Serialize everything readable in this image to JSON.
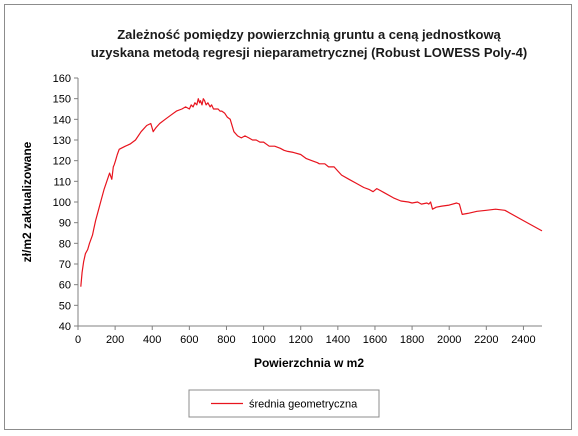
{
  "chart_data": {
    "type": "line",
    "title": [
      "Zależność pomiędzy powierzchnią gruntu a ceną jednostkową",
      "uzyskana metodą regresji nieparametrycznej (Robust LOWESS Poly-4)"
    ],
    "xlabel": "Powierzchnia  w m2",
    "ylabel": "zł/m2 zaktualizowane",
    "xlim": [
      0,
      2500
    ],
    "ylim": [
      40,
      160
    ],
    "xticks": [
      0,
      200,
      400,
      600,
      800,
      1000,
      1200,
      1400,
      1600,
      1800,
      2000,
      2200,
      2400
    ],
    "yticks": [
      40,
      50,
      60,
      70,
      80,
      90,
      100,
      110,
      120,
      130,
      140,
      150,
      160
    ],
    "grid": false,
    "legend_position": "bottom",
    "series": [
      {
        "name": "średnia geometryczna",
        "color": "#e8141e",
        "x": [
          15,
          22,
          30,
          40,
          52,
          62,
          70,
          78,
          85,
          95,
          110,
          125,
          140,
          155,
          170,
          182,
          190,
          195,
          202,
          212,
          222,
          232,
          255,
          280,
          310,
          340,
          370,
          392,
          405,
          412,
          420,
          440,
          470,
          500,
          530,
          560,
          580,
          600,
          610,
          620,
          630,
          640,
          648,
          655,
          660,
          668,
          675,
          682,
          690,
          700,
          712,
          720,
          730,
          742,
          755,
          765,
          775,
          790,
          805,
          820,
          840,
          860,
          880,
          900,
          920,
          940,
          960,
          980,
          1000,
          1030,
          1060,
          1090,
          1110,
          1130,
          1160,
          1200,
          1230,
          1260,
          1290,
          1300,
          1330,
          1350,
          1380,
          1400,
          1420,
          1460,
          1500,
          1540,
          1570,
          1590,
          1610,
          1650,
          1700,
          1740,
          1780,
          1800,
          1830,
          1850,
          1880,
          1890,
          1900,
          1910,
          1930,
          1960,
          2000,
          2040,
          2055,
          2070,
          2100,
          2150,
          2200,
          2250,
          2300,
          2400,
          2500
        ],
        "y": [
          59,
          66,
          71,
          75,
          77,
          80,
          82,
          84,
          87,
          91,
          96,
          101,
          106,
          110,
          114,
          111,
          117,
          118,
          120,
          123,
          125.5,
          126,
          127,
          128,
          130,
          134,
          137,
          138,
          134,
          135,
          136,
          138,
          140,
          142,
          144,
          145,
          146,
          145,
          147,
          146,
          148,
          147,
          150,
          148,
          149,
          147,
          150,
          149,
          147,
          148,
          146,
          147,
          145,
          145,
          145,
          144,
          144,
          143,
          141,
          140,
          134,
          132,
          131,
          132,
          131,
          130,
          130,
          129,
          129,
          127,
          127,
          126,
          125,
          124.5,
          124,
          123,
          121,
          120,
          119,
          118.5,
          118.5,
          117,
          117,
          115,
          113,
          111,
          109,
          107,
          106,
          105,
          106.5,
          104.5,
          102,
          100.5,
          100,
          99.5,
          100,
          99,
          99.5,
          99,
          100,
          96.5,
          97.5,
          98,
          98.5,
          99.5,
          99,
          94,
          94.5,
          95.5,
          96,
          96.5,
          96,
          91,
          86
        ]
      }
    ]
  }
}
